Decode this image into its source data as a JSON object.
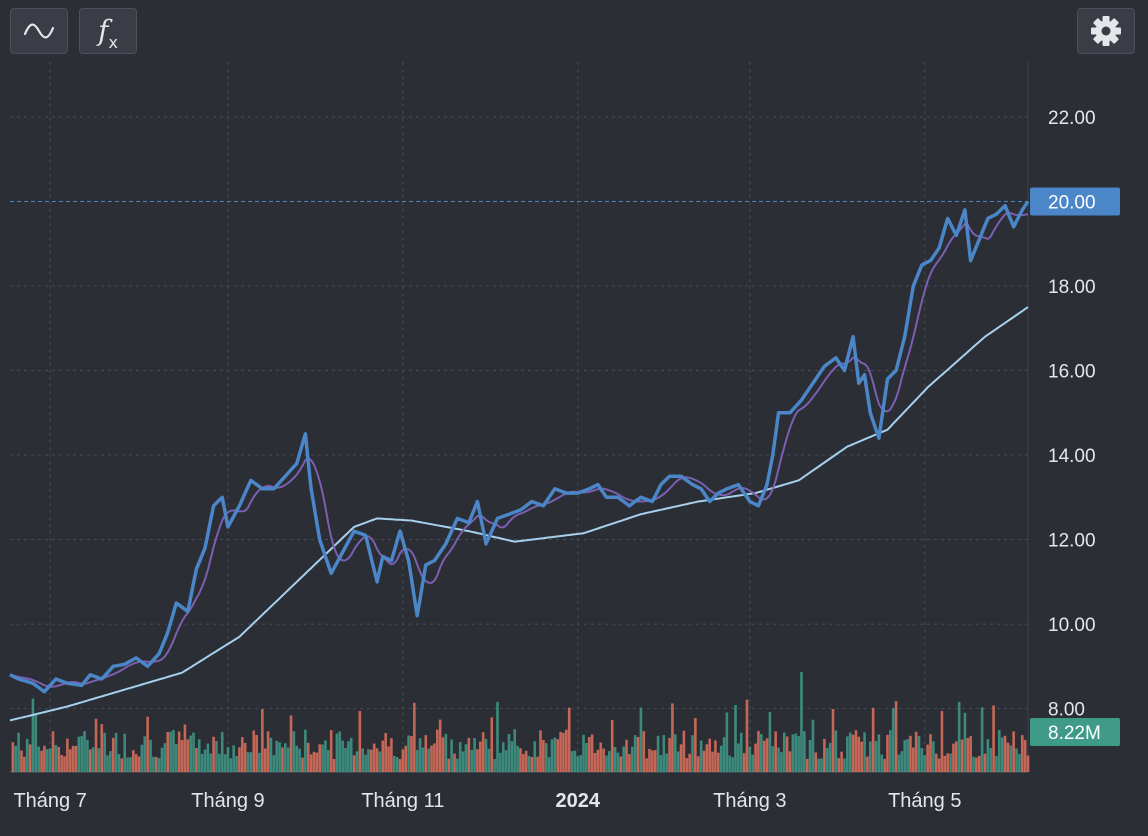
{
  "toolbar": {
    "chart_style_icon": "line-chart-icon",
    "indicators_icon": "function-fx-icon",
    "indicators_label": "f",
    "indicators_sub": "x",
    "settings_icon": "gear-icon"
  },
  "chart_data": {
    "type": "line",
    "title": "",
    "xlabel": "",
    "ylabel": "",
    "ylim": [
      6.5,
      23.3
    ],
    "yticks": [
      "22.00",
      "20.00",
      "18.00",
      "16.00",
      "14.00",
      "12.00",
      "10.00",
      "8.00"
    ],
    "ytick_values": [
      22,
      20,
      18,
      16,
      14,
      12,
      10,
      8
    ],
    "xticks": [
      {
        "label": "Tháng 7",
        "day": 14,
        "bold": false
      },
      {
        "label": "Tháng 9",
        "day": 76,
        "bold": false
      },
      {
        "label": "Tháng 11",
        "day": 137,
        "bold": false
      },
      {
        "label": "2024",
        "day": 198,
        "bold": true
      },
      {
        "label": "Tháng 3",
        "day": 258,
        "bold": false
      },
      {
        "label": "Tháng 5",
        "day": 319,
        "bold": false
      }
    ],
    "x_range_days": [
      0,
      355
    ],
    "grid": true,
    "last_price": {
      "value": 20.0,
      "label": "20.00",
      "color": "#4a86c8"
    },
    "volume_badge": {
      "label": "8.22M",
      "color": "#3f9a87"
    },
    "price_keypoints": [
      [
        0,
        8.8
      ],
      [
        3,
        8.7
      ],
      [
        8,
        8.6
      ],
      [
        12,
        8.4
      ],
      [
        16,
        8.7
      ],
      [
        20,
        8.6
      ],
      [
        25,
        8.55
      ],
      [
        28,
        8.8
      ],
      [
        32,
        8.7
      ],
      [
        36,
        9.0
      ],
      [
        40,
        9.05
      ],
      [
        44,
        9.2
      ],
      [
        48,
        9.0
      ],
      [
        52,
        9.3
      ],
      [
        55,
        9.8
      ],
      [
        58,
        10.5
      ],
      [
        62,
        10.3
      ],
      [
        65,
        11.3
      ],
      [
        68,
        11.8
      ],
      [
        71,
        12.8
      ],
      [
        74,
        13.0
      ],
      [
        76,
        12.3
      ],
      [
        80,
        12.8
      ],
      [
        84,
        13.4
      ],
      [
        88,
        13.2
      ],
      [
        92,
        13.2
      ],
      [
        96,
        13.5
      ],
      [
        100,
        13.8
      ],
      [
        103,
        14.5
      ],
      [
        105,
        13.2
      ],
      [
        108,
        12.0
      ],
      [
        112,
        11.2
      ],
      [
        116,
        11.7
      ],
      [
        120,
        12.2
      ],
      [
        124,
        12.1
      ],
      [
        128,
        11.0
      ],
      [
        130,
        11.6
      ],
      [
        133,
        11.5
      ],
      [
        136,
        12.2
      ],
      [
        139,
        11.5
      ],
      [
        142,
        10.2
      ],
      [
        145,
        11.4
      ],
      [
        148,
        11.5
      ],
      [
        152,
        11.9
      ],
      [
        156,
        12.5
      ],
      [
        160,
        12.4
      ],
      [
        163,
        12.9
      ],
      [
        166,
        11.9
      ],
      [
        170,
        12.5
      ],
      [
        174,
        12.6
      ],
      [
        178,
        12.7
      ],
      [
        182,
        12.9
      ],
      [
        186,
        12.8
      ],
      [
        190,
        13.2
      ],
      [
        194,
        13.1
      ],
      [
        198,
        13.1
      ],
      [
        202,
        13.2
      ],
      [
        205,
        13.3
      ],
      [
        208,
        13.0
      ],
      [
        212,
        13.0
      ],
      [
        216,
        12.8
      ],
      [
        220,
        13.0
      ],
      [
        224,
        12.9
      ],
      [
        227,
        13.3
      ],
      [
        230,
        13.5
      ],
      [
        234,
        13.5
      ],
      [
        238,
        13.3
      ],
      [
        241,
        13.2
      ],
      [
        244,
        12.9
      ],
      [
        247,
        13.1
      ],
      [
        250,
        13.2
      ],
      [
        254,
        13.3
      ],
      [
        258,
        12.9
      ],
      [
        261,
        12.8
      ],
      [
        264,
        13.3
      ],
      [
        266,
        14.0
      ],
      [
        268,
        15.0
      ],
      [
        272,
        15.0
      ],
      [
        276,
        15.3
      ],
      [
        280,
        15.7
      ],
      [
        284,
        16.1
      ],
      [
        288,
        16.3
      ],
      [
        291,
        16.0
      ],
      [
        294,
        16.8
      ],
      [
        296,
        15.7
      ],
      [
        298,
        15.9
      ],
      [
        300,
        15.0
      ],
      [
        303,
        14.4
      ],
      [
        306,
        15.8
      ],
      [
        309,
        16.0
      ],
      [
        312,
        16.8
      ],
      [
        315,
        18.0
      ],
      [
        318,
        18.5
      ],
      [
        321,
        18.6
      ],
      [
        324,
        18.9
      ],
      [
        327,
        19.6
      ],
      [
        330,
        19.2
      ],
      [
        333,
        19.8
      ],
      [
        335,
        18.6
      ],
      [
        338,
        19.1
      ],
      [
        341,
        19.6
      ],
      [
        344,
        19.7
      ],
      [
        347,
        19.9
      ],
      [
        350,
        19.4
      ],
      [
        353,
        19.8
      ],
      [
        355,
        20.0
      ]
    ],
    "series": [
      {
        "name": "",
        "kind": "price",
        "color": "#4a86c8",
        "width": 4
      },
      {
        "name": "",
        "kind": "ma_short",
        "window": 8,
        "color": "#7b5fb0",
        "width": 2
      },
      {
        "name": "",
        "kind": "ma_long",
        "color": "#a6d0ee",
        "width": 2,
        "keypoints": [
          [
            0,
            7.72
          ],
          [
            20,
            8.05
          ],
          [
            40,
            8.45
          ],
          [
            60,
            8.85
          ],
          [
            80,
            9.7
          ],
          [
            100,
            11.0
          ],
          [
            120,
            12.3
          ],
          [
            128,
            12.5
          ],
          [
            140,
            12.45
          ],
          [
            160,
            12.2
          ],
          [
            176,
            11.95
          ],
          [
            200,
            12.15
          ],
          [
            220,
            12.6
          ],
          [
            240,
            12.9
          ],
          [
            260,
            13.1
          ],
          [
            275,
            13.4
          ],
          [
            292,
            14.2
          ],
          [
            306,
            14.6
          ],
          [
            320,
            15.6
          ],
          [
            340,
            16.8
          ],
          [
            355,
            17.5
          ]
        ]
      }
    ],
    "volume": {
      "ylim_millions": [
        0,
        13
      ],
      "colors": {
        "up": "#3f9a87",
        "down": "#e0715d"
      }
    }
  }
}
